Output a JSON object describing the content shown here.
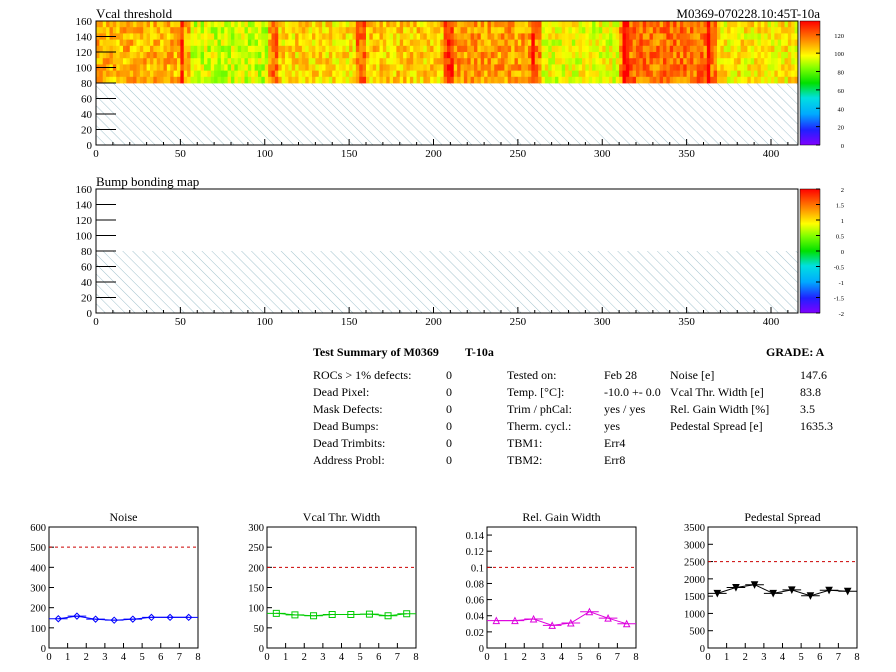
{
  "header": {
    "title_right": "M0369-070228.10:45T-10a"
  },
  "maps": [
    {
      "title": "Vcal threshold",
      "x_ticks": [
        0,
        50,
        100,
        150,
        200,
        250,
        300,
        350,
        400
      ],
      "y_ticks": [
        0,
        20,
        40,
        60,
        80,
        100,
        120,
        140,
        160
      ],
      "xlim": [
        0,
        416
      ],
      "ylim": [
        0,
        160
      ],
      "filled_region_y": [
        80,
        160
      ],
      "hatched_region_y": [
        0,
        80
      ],
      "palette_ticks": [
        "0",
        "20",
        "40",
        "60",
        "80",
        "100",
        "120"
      ],
      "palette_range": [
        0,
        135
      ]
    },
    {
      "title": "Bump bonding map",
      "x_ticks": [
        0,
        50,
        100,
        150,
        200,
        250,
        300,
        350,
        400
      ],
      "y_ticks": [
        0,
        20,
        40,
        60,
        80,
        100,
        120,
        140,
        160
      ],
      "xlim": [
        0,
        416
      ],
      "ylim": [
        0,
        160
      ],
      "filled_region_y": [
        80,
        160
      ],
      "hatched_region_y": [
        0,
        80
      ],
      "palette_ticks": [
        "-2",
        "-1.5",
        "-1",
        "-0.5",
        "0",
        "0.5",
        "1",
        "1.5",
        "2"
      ],
      "palette_range": [
        -2,
        2
      ]
    }
  ],
  "summary": {
    "title": "Test Summary of M0369",
    "test": "T-10a",
    "grade": "GRADE:  A",
    "defects": [
      {
        "label": "ROCs > 1% defects:",
        "value": "0"
      },
      {
        "label": "Dead Pixel:",
        "value": "0"
      },
      {
        "label": "Mask Defects:",
        "value": "0"
      },
      {
        "label": "Dead Bumps:",
        "value": "0"
      },
      {
        "label": "Dead Trimbits:",
        "value": "0"
      },
      {
        "label": "Address Probl:",
        "value": "0"
      }
    ],
    "conditions": [
      {
        "label": "Tested on:",
        "value": "Feb 28"
      },
      {
        "label": "Temp. [°C]:",
        "value": "-10.0 +- 0.0"
      },
      {
        "label": "Trim / phCal:",
        "value": "yes / yes"
      },
      {
        "label": "Therm. cycl.:",
        "value": "yes"
      },
      {
        "label": "TBM1:",
        "value": "Err4"
      },
      {
        "label": "TBM2:",
        "value": "Err8"
      }
    ],
    "results": [
      {
        "label": "Noise [e]",
        "value": "147.6"
      },
      {
        "label": "Vcal Thr. Width [e]",
        "value": "83.8"
      },
      {
        "label": "Rel. Gain Width [%]",
        "value": "3.5"
      },
      {
        "label": "Pedestal Spread [e]",
        "value": "1635.3"
      }
    ]
  },
  "chart_data": [
    {
      "type": "heatmap",
      "title": "Vcal threshold",
      "xlim": [
        0,
        416
      ],
      "ylim": [
        0,
        160
      ],
      "x_ticks": [
        0,
        50,
        100,
        150,
        200,
        250,
        300,
        350,
        400
      ],
      "y_ticks": [
        0,
        20,
        40,
        60,
        80,
        100,
        120,
        140,
        160
      ],
      "z_range": [
        0,
        135
      ],
      "approx_roc_mean_values": [
        108,
        92,
        102,
        104,
        112,
        96,
        118,
        100
      ],
      "approx_roc_edge_columns": [
        52,
        104,
        156,
        208,
        260,
        312,
        364
      ],
      "grid": false
    },
    {
      "type": "heatmap",
      "title": "Bump bonding map",
      "xlim": [
        0,
        416
      ],
      "ylim": [
        0,
        160
      ],
      "x_ticks": [
        0,
        50,
        100,
        150,
        200,
        250,
        300,
        350,
        400
      ],
      "y_ticks": [
        0,
        20,
        40,
        60,
        80,
        100,
        120,
        140,
        160
      ],
      "z_range": [
        -2,
        2
      ],
      "grid": false
    },
    {
      "type": "line",
      "title": "Noise",
      "x": [
        0.5,
        1.5,
        2.5,
        3.5,
        4.5,
        5.5,
        6.5,
        7.5
      ],
      "values": [
        145,
        158,
        143,
        138,
        143,
        152,
        152,
        152
      ],
      "reference": 500,
      "xlim": [
        0,
        8
      ],
      "ylim": [
        0,
        600
      ],
      "y_ticks": [
        0,
        100,
        200,
        300,
        400,
        500,
        600
      ],
      "x_ticks": [
        0,
        1,
        2,
        3,
        4,
        5,
        6,
        7,
        8
      ],
      "color": "#0000ff",
      "marker": "diamond"
    },
    {
      "type": "line",
      "title": "Vcal Thr. Width",
      "x": [
        0.5,
        1.5,
        2.5,
        3.5,
        4.5,
        5.5,
        6.5,
        7.5
      ],
      "values": [
        86,
        82,
        80,
        83,
        83,
        84,
        80,
        85
      ],
      "reference": 200,
      "xlim": [
        0,
        8
      ],
      "ylim": [
        0,
        300
      ],
      "y_ticks": [
        0,
        50,
        100,
        150,
        200,
        250,
        300
      ],
      "x_ticks": [
        0,
        1,
        2,
        3,
        4,
        5,
        6,
        7,
        8
      ],
      "color": "#00cc00",
      "marker": "square"
    },
    {
      "type": "line",
      "title": "Rel. Gain Width",
      "x": [
        0.5,
        1.5,
        2.5,
        3.5,
        4.5,
        5.5,
        6.5,
        7.5
      ],
      "values": [
        0.034,
        0.034,
        0.036,
        0.028,
        0.031,
        0.045,
        0.037,
        0.03
      ],
      "reference": 0.1,
      "xlim": [
        0,
        8
      ],
      "ylim": [
        0,
        0.15
      ],
      "y_ticks": [
        0,
        0.02,
        0.04,
        0.06,
        0.08,
        0.1,
        0.12,
        0.14
      ],
      "x_ticks": [
        0,
        1,
        2,
        3,
        4,
        5,
        6,
        7,
        8
      ],
      "color": "#dd00dd",
      "marker": "triangle"
    },
    {
      "type": "line",
      "title": "Pedestal Spread",
      "x": [
        0.5,
        1.5,
        2.5,
        3.5,
        4.5,
        5.5,
        6.5,
        7.5
      ],
      "values": [
        1580,
        1750,
        1830,
        1580,
        1680,
        1510,
        1670,
        1640
      ],
      "reference": 2500,
      "xlim": [
        0,
        8
      ],
      "ylim": [
        0,
        3500
      ],
      "y_ticks": [
        0,
        500,
        1000,
        1500,
        2000,
        2500,
        3000,
        3500
      ],
      "x_ticks": [
        0,
        1,
        2,
        3,
        4,
        5,
        6,
        7,
        8
      ],
      "color": "#000000",
      "marker": "triangle-down"
    }
  ]
}
